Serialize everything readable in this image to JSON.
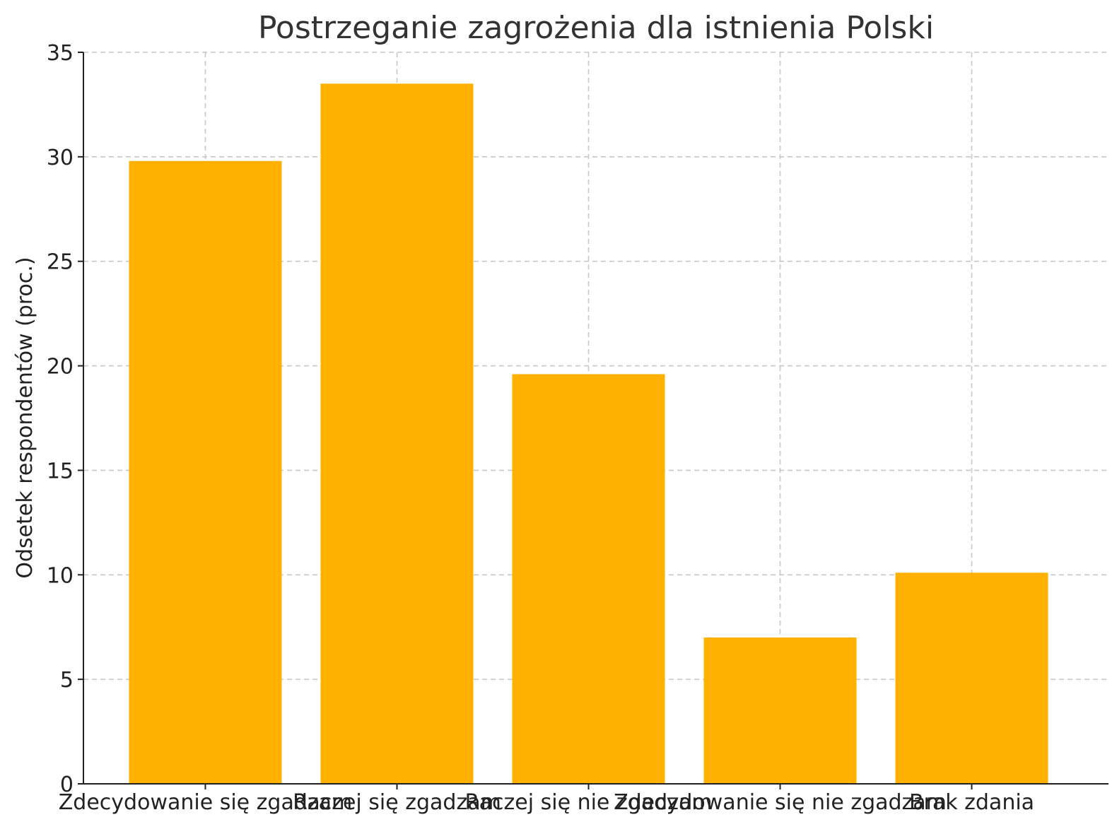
{
  "chart_data": {
    "type": "bar",
    "title": "Postrzeganie zagrożenia dla istnienia Polski",
    "xlabel": "",
    "ylabel": "Odsetek respondentów (proc.)",
    "categories": [
      "Zdecydowanie się zgadzam",
      "Raczej się zgadzam",
      "Raczej się nie zgadzam",
      "Zdecydowanie się nie zgadzam",
      "Brak zdania"
    ],
    "values": [
      29.8,
      33.5,
      19.6,
      7.0,
      10.1
    ],
    "ylim": [
      0,
      35
    ],
    "yticks": [
      0,
      5,
      10,
      15,
      20,
      25,
      30,
      35
    ],
    "grid": true,
    "bar_color": "#FFB000"
  }
}
